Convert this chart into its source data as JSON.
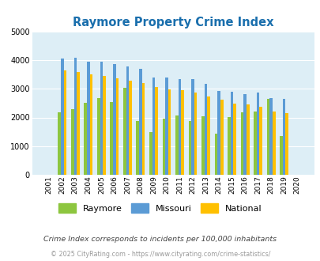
{
  "title": "Raymore Property Crime Index",
  "years": [
    2001,
    2002,
    2003,
    2004,
    2005,
    2006,
    2007,
    2008,
    2009,
    2010,
    2011,
    2012,
    2013,
    2014,
    2015,
    2016,
    2017,
    2018,
    2019,
    2020
  ],
  "raymore": [
    0,
    2170,
    2300,
    2520,
    2680,
    2530,
    3040,
    1870,
    1480,
    1950,
    2060,
    1870,
    2040,
    1430,
    2010,
    2170,
    2220,
    2650,
    1340,
    0
  ],
  "missouri": [
    0,
    4060,
    4080,
    3940,
    3950,
    3850,
    3770,
    3700,
    3380,
    3380,
    3330,
    3330,
    3160,
    2930,
    2900,
    2820,
    2870,
    2670,
    2640,
    0
  ],
  "national": [
    0,
    3640,
    3590,
    3510,
    3450,
    3360,
    3290,
    3210,
    3060,
    2980,
    2960,
    2880,
    2720,
    2610,
    2490,
    2450,
    2360,
    2220,
    2140,
    0
  ],
  "raymore_color": "#8dc63f",
  "missouri_color": "#5b9bd5",
  "national_color": "#ffc000",
  "bg_color": "#ddeef6",
  "ylim": [
    0,
    5000
  ],
  "ylabel_ticks": [
    0,
    1000,
    2000,
    3000,
    4000,
    5000
  ],
  "footnote1": "Crime Index corresponds to incidents per 100,000 inhabitants",
  "footnote2": "© 2025 CityRating.com - https://www.cityrating.com/crime-statistics/",
  "title_color": "#1a6fad",
  "footnote1_color": "#444444",
  "footnote2_color": "#999999"
}
